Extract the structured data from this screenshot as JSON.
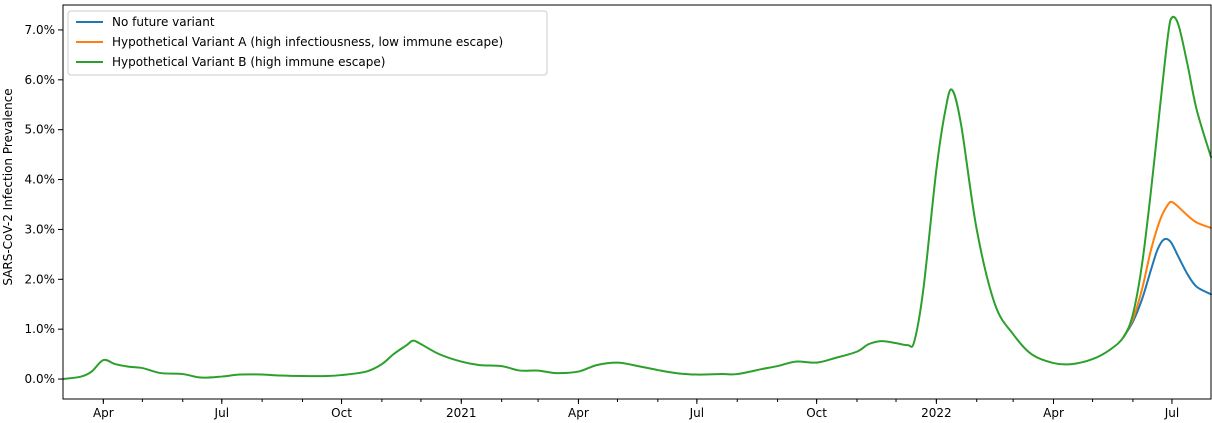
{
  "chart_data": {
    "type": "line",
    "title": "",
    "xlabel": "",
    "ylabel": "SARS-CoV-2 Infection Prevalence",
    "y_unit": "percent",
    "xlim": [
      "2020-03-01",
      "2022-07-31"
    ],
    "ylim": [
      -0.4,
      7.5
    ],
    "grid": false,
    "legend_position": "top-left",
    "y_ticks": [
      {
        "value": 0,
        "label": "0.0%"
      },
      {
        "value": 1,
        "label": "1.0%"
      },
      {
        "value": 2,
        "label": "2.0%"
      },
      {
        "value": 3,
        "label": "3.0%"
      },
      {
        "value": 4,
        "label": "4.0%"
      },
      {
        "value": 5,
        "label": "5.0%"
      },
      {
        "value": 6,
        "label": "6.0%"
      },
      {
        "value": 7,
        "label": "7.0%"
      }
    ],
    "x_ticks": [
      {
        "date": "2020-04-01",
        "label": "Apr"
      },
      {
        "date": "2020-07-01",
        "label": "Jul"
      },
      {
        "date": "2020-10-01",
        "label": "Oct"
      },
      {
        "date": "2021-01-01",
        "label": "2021"
      },
      {
        "date": "2021-04-01",
        "label": "Apr"
      },
      {
        "date": "2021-07-01",
        "label": "Jul"
      },
      {
        "date": "2021-10-01",
        "label": "Oct"
      },
      {
        "date": "2022-01-01",
        "label": "2022"
      },
      {
        "date": "2022-04-01",
        "label": "Apr"
      },
      {
        "date": "2022-07-01",
        "label": "Jul"
      }
    ],
    "series": [
      {
        "name": "No future variant",
        "color": "#1f77b4",
        "points": [
          [
            "2022-05-25",
            0.85
          ],
          [
            "2022-06-01",
            1.15
          ],
          [
            "2022-06-08",
            1.6
          ],
          [
            "2022-06-15",
            2.2
          ],
          [
            "2022-06-20",
            2.6
          ],
          [
            "2022-06-25",
            2.8
          ],
          [
            "2022-06-30",
            2.75
          ],
          [
            "2022-07-06",
            2.45
          ],
          [
            "2022-07-13",
            2.1
          ],
          [
            "2022-07-20",
            1.85
          ],
          [
            "2022-07-31",
            1.7
          ]
        ]
      },
      {
        "name": "Hypothetical Variant A (high infectiousness, low immune escape)",
        "color": "#ff7f0e",
        "points": [
          [
            "2022-05-25",
            0.85
          ],
          [
            "2022-06-01",
            1.2
          ],
          [
            "2022-06-08",
            1.8
          ],
          [
            "2022-06-15",
            2.6
          ],
          [
            "2022-06-22",
            3.2
          ],
          [
            "2022-06-28",
            3.5
          ],
          [
            "2022-07-01",
            3.55
          ],
          [
            "2022-07-06",
            3.45
          ],
          [
            "2022-07-13",
            3.28
          ],
          [
            "2022-07-20",
            3.14
          ],
          [
            "2022-07-31",
            3.03
          ]
        ]
      },
      {
        "name": "Hypothetical Variant B (high immune escape)",
        "color": "#2ca02c",
        "points": [
          [
            "2020-03-01",
            0.0
          ],
          [
            "2020-03-15",
            0.05
          ],
          [
            "2020-03-23",
            0.15
          ],
          [
            "2020-04-01",
            0.38
          ],
          [
            "2020-04-10",
            0.3
          ],
          [
            "2020-04-20",
            0.25
          ],
          [
            "2020-05-01",
            0.22
          ],
          [
            "2020-05-15",
            0.12
          ],
          [
            "2020-06-01",
            0.1
          ],
          [
            "2020-06-15",
            0.03
          ],
          [
            "2020-07-01",
            0.05
          ],
          [
            "2020-07-15",
            0.09
          ],
          [
            "2020-08-01",
            0.09
          ],
          [
            "2020-08-15",
            0.07
          ],
          [
            "2020-09-01",
            0.06
          ],
          [
            "2020-09-20",
            0.06
          ],
          [
            "2020-10-01",
            0.08
          ],
          [
            "2020-10-20",
            0.15
          ],
          [
            "2020-11-01",
            0.3
          ],
          [
            "2020-11-10",
            0.5
          ],
          [
            "2020-11-20",
            0.68
          ],
          [
            "2020-11-25",
            0.77
          ],
          [
            "2020-12-01",
            0.7
          ],
          [
            "2020-12-15",
            0.5
          ],
          [
            "2021-01-01",
            0.35
          ],
          [
            "2021-01-15",
            0.28
          ],
          [
            "2021-02-01",
            0.26
          ],
          [
            "2021-02-15",
            0.17
          ],
          [
            "2021-03-01",
            0.17
          ],
          [
            "2021-03-15",
            0.12
          ],
          [
            "2021-04-01",
            0.15
          ],
          [
            "2021-04-15",
            0.28
          ],
          [
            "2021-05-01",
            0.33
          ],
          [
            "2021-05-15",
            0.27
          ],
          [
            "2021-06-01",
            0.18
          ],
          [
            "2021-06-15",
            0.12
          ],
          [
            "2021-07-01",
            0.09
          ],
          [
            "2021-07-20",
            0.1
          ],
          [
            "2021-08-01",
            0.1
          ],
          [
            "2021-08-20",
            0.2
          ],
          [
            "2021-09-01",
            0.26
          ],
          [
            "2021-09-15",
            0.35
          ],
          [
            "2021-10-01",
            0.33
          ],
          [
            "2021-10-15",
            0.42
          ],
          [
            "2021-11-01",
            0.55
          ],
          [
            "2021-11-10",
            0.7
          ],
          [
            "2021-11-20",
            0.76
          ],
          [
            "2021-12-01",
            0.72
          ],
          [
            "2021-12-10",
            0.68
          ],
          [
            "2021-12-15",
            0.75
          ],
          [
            "2021-12-22",
            1.8
          ],
          [
            "2022-01-01",
            4.2
          ],
          [
            "2022-01-08",
            5.4
          ],
          [
            "2022-01-13",
            5.8
          ],
          [
            "2022-01-20",
            5.1
          ],
          [
            "2022-02-01",
            3.0
          ],
          [
            "2022-02-15",
            1.5
          ],
          [
            "2022-03-01",
            0.9
          ],
          [
            "2022-03-15",
            0.5
          ],
          [
            "2022-04-01",
            0.32
          ],
          [
            "2022-04-15",
            0.3
          ],
          [
            "2022-05-01",
            0.4
          ],
          [
            "2022-05-15",
            0.6
          ],
          [
            "2022-05-25",
            0.85
          ],
          [
            "2022-06-01",
            1.3
          ],
          [
            "2022-06-08",
            2.3
          ],
          [
            "2022-06-15",
            3.8
          ],
          [
            "2022-06-22",
            5.5
          ],
          [
            "2022-06-28",
            6.9
          ],
          [
            "2022-07-01",
            7.25
          ],
          [
            "2022-07-06",
            7.1
          ],
          [
            "2022-07-13",
            6.3
          ],
          [
            "2022-07-20",
            5.4
          ],
          [
            "2022-07-31",
            4.45
          ]
        ]
      }
    ]
  }
}
